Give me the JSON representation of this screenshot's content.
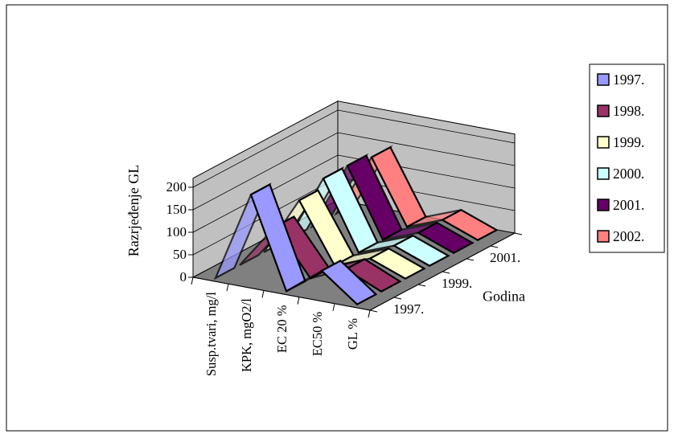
{
  "chart_data": {
    "type": "line",
    "subtype": "3d-ribbon",
    "title": "",
    "ylabel": "Razrjeđenje GL",
    "zlabel": "Godina",
    "ylim": [
      0,
      200
    ],
    "y_ticks": [
      "0",
      "50",
      "100",
      "150",
      "200"
    ],
    "categories": [
      "Susp.tvari, mg/l",
      "KPK, mgO2/l",
      "EC 20 %",
      "EC50 %",
      "GL %"
    ],
    "depth_tick_labels": [
      "1997.",
      "1999.",
      "2001."
    ],
    "legend_position": "right",
    "grid": true,
    "series": [
      {
        "name": "1997.",
        "color": "#9999ff",
        "values": [
          0,
          200,
          0,
          60,
          0
        ]
      },
      {
        "name": "1998.",
        "color": "#993366",
        "values": [
          0,
          100,
          0,
          35,
          0
        ]
      },
      {
        "name": "1999.",
        "color": "#ffffcc",
        "values": [
          0,
          130,
          0,
          30,
          0
        ]
      },
      {
        "name": "2000.",
        "color": "#ccffff",
        "values": [
          0,
          150,
          0,
          30,
          0
        ]
      },
      {
        "name": "2001.",
        "color": "#660066",
        "values": [
          0,
          150,
          0,
          30,
          0
        ]
      },
      {
        "name": "2002.",
        "color": "#ff8080",
        "values": [
          0,
          140,
          0,
          30,
          0
        ]
      }
    ]
  }
}
